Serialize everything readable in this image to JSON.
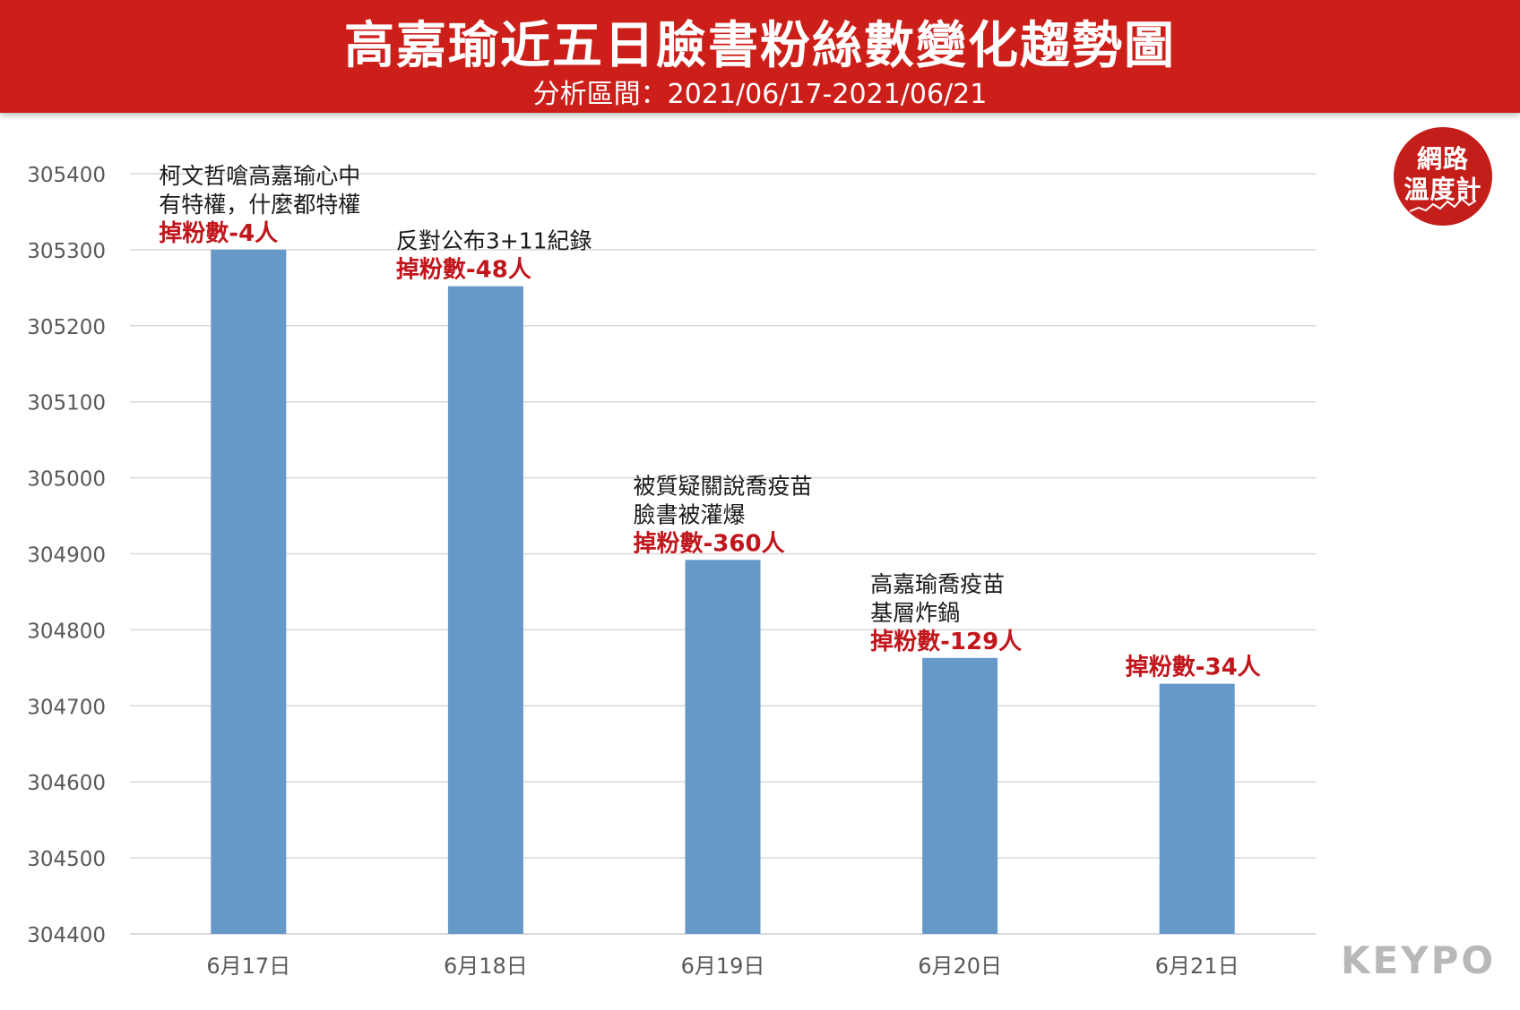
{
  "header": {
    "title": "高嘉瑜近五日臉書粉絲數變化趨勢圖",
    "subtitle": "分析區間：2021/06/17-2021/06/21"
  },
  "logos": {
    "badge_line1": "網路",
    "badge_line2": "溫度計",
    "brand": "KEYPO"
  },
  "colors": {
    "header_bg": "#cc1f1a",
    "bar": "#6699c8",
    "annotation_highlight": "#c0161c",
    "grid": "#d9d9d9",
    "axis_text": "#595959"
  },
  "chart_data": {
    "type": "bar",
    "categories": [
      "6月17日",
      "6月18日",
      "6月19日",
      "6月20日",
      "6月21日"
    ],
    "values": [
      305300,
      305252,
      304892,
      304763,
      304729
    ],
    "ylim": [
      304400,
      305400
    ],
    "yticks": [
      305400,
      305300,
      305200,
      305100,
      305000,
      304900,
      304800,
      304700,
      304600,
      304500,
      304400
    ],
    "grid": true,
    "xlabel": "",
    "ylabel": "",
    "annotations": [
      {
        "lines": [
          "柯文哲嗆高嘉瑜心中",
          "有特權，什麼都特權"
        ],
        "highlight": "掉粉數-4人"
      },
      {
        "lines": [
          "反對公布3+11紀錄"
        ],
        "highlight": "掉粉數-48人"
      },
      {
        "lines": [
          "被質疑關說喬疫苗",
          "臉書被灌爆"
        ],
        "highlight": "掉粉數-360人"
      },
      {
        "lines": [
          "高嘉瑜喬疫苗",
          "基層炸鍋"
        ],
        "highlight": "掉粉數-129人"
      },
      {
        "lines": [],
        "highlight": "掉粉數-34人"
      }
    ]
  }
}
